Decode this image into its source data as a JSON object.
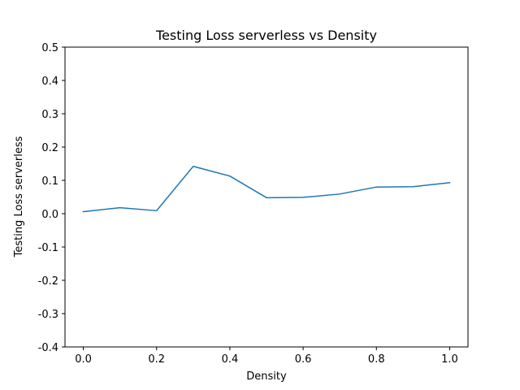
{
  "chart_data": {
    "type": "line",
    "title": "Testing Loss serverless vs Density",
    "xlabel": "Density",
    "ylabel": "Testing Loss serverless",
    "xlim": [
      -0.05,
      1.05
    ],
    "ylim": [
      -0.4,
      0.5
    ],
    "x_ticks": [
      "0.0",
      "0.2",
      "0.4",
      "0.6",
      "0.8",
      "1.0"
    ],
    "y_ticks": [
      "-0.4",
      "-0.3",
      "-0.2",
      "-0.1",
      "0.0",
      "0.1",
      "0.2",
      "0.3",
      "0.4",
      "0.5"
    ],
    "grid": false,
    "series": [
      {
        "color": "#1f77b4",
        "x": [
          0.0,
          0.1,
          0.2,
          0.3,
          0.4,
          0.5,
          0.6,
          0.7,
          0.8,
          0.9,
          1.0
        ],
        "y": [
          0.006,
          0.018,
          0.009,
          0.142,
          0.113,
          0.048,
          0.049,
          0.059,
          0.08,
          0.081,
          0.093
        ]
      }
    ]
  }
}
